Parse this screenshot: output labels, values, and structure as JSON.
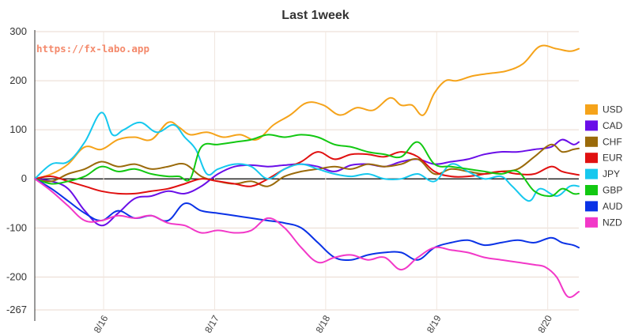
{
  "chart_data": {
    "type": "line",
    "title": "Last 1week",
    "watermark": "https://fx-labo.app",
    "ylim": [
      -267,
      300
    ],
    "y_ticks": [
      "300",
      "200",
      "100",
      "0",
      "-100",
      "-200",
      "-267"
    ],
    "y_tick_values": [
      300,
      200,
      100,
      0,
      -100,
      -200,
      -267
    ],
    "x_ticks": [
      "8/16",
      "8/17",
      "8/18",
      "8/19",
      "8/20"
    ],
    "x_range": [
      0,
      4.9
    ],
    "x_tick_positions": [
      0.62,
      1.62,
      2.62,
      3.62,
      4.62
    ],
    "grid": "horizontal",
    "legend": "right",
    "series": [
      {
        "name": "USD",
        "color": "#f5a31a",
        "x": [
          0,
          0.15,
          0.3,
          0.45,
          0.6,
          0.75,
          0.9,
          1.05,
          1.2,
          1.3,
          1.4,
          1.55,
          1.7,
          1.85,
          2.0,
          2.15,
          2.3,
          2.45,
          2.6,
          2.75,
          2.9,
          3.05,
          3.2,
          3.3,
          3.4,
          3.5,
          3.6,
          3.7,
          3.8,
          3.95,
          4.1,
          4.25,
          4.4,
          4.55,
          4.7,
          4.82,
          4.9
        ],
        "y": [
          0,
          10,
          30,
          65,
          60,
          80,
          85,
          80,
          115,
          105,
          90,
          95,
          85,
          90,
          80,
          110,
          130,
          155,
          150,
          130,
          145,
          140,
          165,
          150,
          150,
          130,
          175,
          200,
          200,
          210,
          215,
          220,
          235,
          270,
          265,
          260,
          265
        ]
      },
      {
        "name": "CAD",
        "color": "#6a0ee8",
        "x": [
          0,
          0.15,
          0.3,
          0.45,
          0.6,
          0.75,
          0.9,
          1.05,
          1.2,
          1.35,
          1.5,
          1.65,
          1.8,
          1.95,
          2.1,
          2.25,
          2.4,
          2.55,
          2.7,
          2.85,
          3.0,
          3.15,
          3.3,
          3.45,
          3.6,
          3.75,
          3.9,
          4.05,
          4.2,
          4.35,
          4.5,
          4.65,
          4.75,
          4.85,
          4.9
        ],
        "y": [
          0,
          -5,
          -20,
          -65,
          -95,
          -70,
          -40,
          -35,
          -25,
          -30,
          -15,
          10,
          25,
          28,
          25,
          28,
          30,
          25,
          15,
          28,
          30,
          25,
          35,
          40,
          30,
          35,
          40,
          50,
          55,
          55,
          60,
          65,
          80,
          70,
          75
        ]
      },
      {
        "name": "CHF",
        "color": "#9a6a0a",
        "x": [
          0,
          0.15,
          0.3,
          0.45,
          0.6,
          0.75,
          0.9,
          1.05,
          1.2,
          1.35,
          1.5,
          1.65,
          1.8,
          1.95,
          2.1,
          2.25,
          2.4,
          2.55,
          2.7,
          2.85,
          3.0,
          3.15,
          3.3,
          3.45,
          3.6,
          3.75,
          3.9,
          4.05,
          4.2,
          4.35,
          4.5,
          4.65,
          4.75,
          4.85,
          4.9
        ],
        "y": [
          0,
          -5,
          10,
          20,
          35,
          25,
          30,
          20,
          25,
          30,
          5,
          -5,
          -10,
          -5,
          -15,
          5,
          15,
          20,
          25,
          20,
          30,
          25,
          30,
          40,
          10,
          20,
          15,
          10,
          15,
          20,
          45,
          70,
          55,
          60,
          62
        ]
      },
      {
        "name": "EUR",
        "color": "#e01010",
        "x": [
          0,
          0.15,
          0.3,
          0.45,
          0.6,
          0.75,
          0.9,
          1.05,
          1.2,
          1.35,
          1.5,
          1.65,
          1.8,
          1.95,
          2.1,
          2.25,
          2.4,
          2.55,
          2.7,
          2.85,
          3.0,
          3.15,
          3.3,
          3.45,
          3.6,
          3.75,
          3.9,
          4.05,
          4.2,
          4.35,
          4.5,
          4.65,
          4.75,
          4.85,
          4.9
        ],
        "y": [
          0,
          5,
          -5,
          -15,
          -25,
          -30,
          -30,
          -25,
          -20,
          -10,
          0,
          -5,
          -10,
          -15,
          0,
          20,
          35,
          55,
          40,
          50,
          50,
          45,
          55,
          45,
          15,
          5,
          5,
          10,
          15,
          10,
          10,
          25,
          15,
          10,
          8
        ]
      },
      {
        "name": "JPY",
        "color": "#16c8ee",
        "x": [
          0,
          0.15,
          0.3,
          0.45,
          0.6,
          0.7,
          0.8,
          0.95,
          1.1,
          1.25,
          1.35,
          1.45,
          1.55,
          1.65,
          1.8,
          1.95,
          2.1,
          2.25,
          2.4,
          2.55,
          2.7,
          2.85,
          3.0,
          3.15,
          3.3,
          3.45,
          3.6,
          3.75,
          3.9,
          4.05,
          4.2,
          4.3,
          4.45,
          4.55,
          4.7,
          4.82,
          4.9
        ],
        "y": [
          0,
          30,
          35,
          75,
          135,
          90,
          100,
          115,
          95,
          110,
          85,
          60,
          10,
          20,
          30,
          25,
          0,
          20,
          30,
          20,
          10,
          5,
          10,
          0,
          0,
          10,
          -5,
          30,
          15,
          0,
          5,
          -15,
          -45,
          -20,
          -35,
          -15,
          -15
        ]
      },
      {
        "name": "GBP",
        "color": "#12c812",
        "x": [
          0,
          0.15,
          0.3,
          0.45,
          0.6,
          0.75,
          0.9,
          1.05,
          1.2,
          1.3,
          1.4,
          1.5,
          1.65,
          1.8,
          1.95,
          2.1,
          2.25,
          2.4,
          2.55,
          2.7,
          2.85,
          3.0,
          3.15,
          3.3,
          3.45,
          3.6,
          3.75,
          3.9,
          4.05,
          4.2,
          4.35,
          4.5,
          4.65,
          4.75,
          4.85,
          4.9
        ],
        "y": [
          0,
          -10,
          -5,
          5,
          25,
          15,
          20,
          10,
          5,
          5,
          0,
          65,
          70,
          75,
          80,
          90,
          85,
          90,
          85,
          70,
          65,
          55,
          50,
          45,
          75,
          30,
          25,
          20,
          15,
          10,
          15,
          -25,
          -35,
          -20,
          -30,
          -30
        ]
      },
      {
        "name": "AUD",
        "color": "#0a32e6",
        "x": [
          0,
          0.15,
          0.3,
          0.45,
          0.6,
          0.75,
          0.9,
          1.05,
          1.2,
          1.35,
          1.5,
          1.65,
          1.8,
          1.95,
          2.1,
          2.25,
          2.4,
          2.55,
          2.7,
          2.85,
          3.0,
          3.15,
          3.3,
          3.45,
          3.6,
          3.75,
          3.9,
          4.05,
          4.2,
          4.35,
          4.5,
          4.65,
          4.75,
          4.85,
          4.9
        ],
        "y": [
          0,
          -20,
          -45,
          -70,
          -85,
          -65,
          -80,
          -75,
          -85,
          -50,
          -65,
          -70,
          -75,
          -80,
          -85,
          -90,
          -100,
          -130,
          -160,
          -165,
          -155,
          -150,
          -150,
          -165,
          -140,
          -130,
          -125,
          -135,
          -130,
          -125,
          -130,
          -120,
          -130,
          -135,
          -140
        ]
      },
      {
        "name": "NZD",
        "color": "#f238c8",
        "x": [
          0,
          0.15,
          0.3,
          0.45,
          0.6,
          0.75,
          0.9,
          1.05,
          1.2,
          1.35,
          1.5,
          1.65,
          1.8,
          1.95,
          2.1,
          2.25,
          2.4,
          2.55,
          2.7,
          2.85,
          3.0,
          3.15,
          3.3,
          3.45,
          3.6,
          3.75,
          3.9,
          4.05,
          4.2,
          4.35,
          4.5,
          4.6,
          4.7,
          4.8,
          4.9
        ],
        "y": [
          0,
          -25,
          -55,
          -85,
          -85,
          -75,
          -80,
          -75,
          -90,
          -95,
          -110,
          -105,
          -110,
          -105,
          -80,
          -100,
          -140,
          -170,
          -160,
          -155,
          -165,
          -160,
          -185,
          -160,
          -140,
          -145,
          -150,
          -160,
          -165,
          -170,
          -175,
          -180,
          -200,
          -240,
          -230
        ]
      }
    ]
  }
}
